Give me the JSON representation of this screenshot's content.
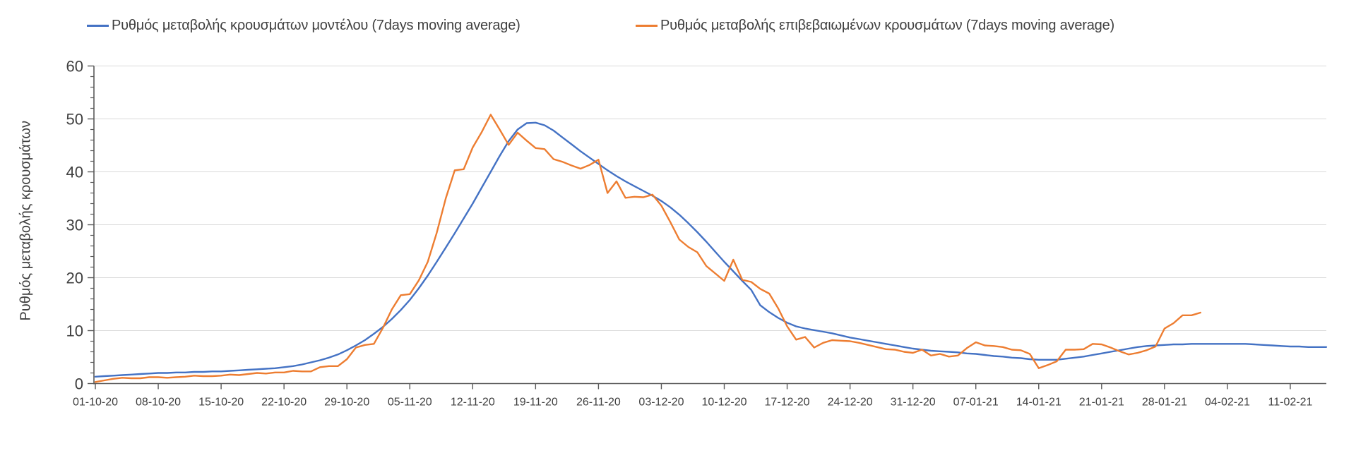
{
  "legend": {
    "items": [
      {
        "label": "Ρυθμός μεταβολής κρουσμάτων μοντέλου (7days moving average)",
        "color": "#4472C4"
      },
      {
        "label": "Ρυθμός μεταβολής επιβεβαιωμένων κρουσμάτων (7days moving average)",
        "color": "#ED7D31"
      }
    ]
  },
  "y_axis": {
    "title": "Ρυθμός μεταβολής κρουσμάτων",
    "tick_labels": [
      "0",
      "10",
      "20",
      "30",
      "40",
      "50",
      "60"
    ]
  },
  "x_axis": {
    "labels": [
      "01-10-20",
      "08-10-20",
      "15-10-20",
      "22-10-20",
      "29-10-20",
      "05-11-20",
      "12-11-20",
      "19-11-20",
      "26-11-20",
      "03-12-20",
      "10-12-20",
      "17-12-20",
      "24-12-20",
      "31-12-20",
      "07-01-21",
      "14-01-21",
      "21-01-21",
      "28-01-21",
      "04-02-21",
      "11-02-21"
    ]
  },
  "chart_data": {
    "type": "line",
    "title": "",
    "xlabel": "",
    "ylabel": "Ρυθμός μεταβολής κρουσμάτων",
    "ylim": [
      0,
      60
    ],
    "y_major_step": 10,
    "y_minor_step": 2,
    "grid": "horizontal-major",
    "legend_position": "top",
    "x_tick_labels": [
      "01-10-20",
      "08-10-20",
      "15-10-20",
      "22-10-20",
      "29-10-20",
      "05-11-20",
      "12-11-20",
      "19-11-20",
      "26-11-20",
      "03-12-20",
      "10-12-20",
      "17-12-20",
      "24-12-20",
      "31-12-20",
      "07-01-21",
      "14-01-21",
      "21-01-21",
      "28-01-21",
      "04-02-21",
      "11-02-21"
    ],
    "x_unit": "days since 01-10-20, one point per day, weekly ticks",
    "series": [
      {
        "name": "Ρυθμός μεταβολής κρουσμάτων μοντέλου (7days moving average)",
        "color": "#4472C4",
        "start_day": 0,
        "values": [
          1.3,
          1.4,
          1.5,
          1.6,
          1.7,
          1.8,
          1.9,
          2.0,
          2.0,
          2.1,
          2.1,
          2.2,
          2.2,
          2.3,
          2.3,
          2.4,
          2.5,
          2.6,
          2.7,
          2.8,
          2.9,
          3.1,
          3.3,
          3.6,
          4.0,
          4.4,
          4.9,
          5.5,
          6.3,
          7.2,
          8.2,
          9.4,
          10.7,
          12.2,
          13.9,
          15.8,
          18.0,
          20.4,
          23.0,
          25.7,
          28.4,
          31.2,
          34.0,
          37.0,
          40.0,
          43.0,
          45.8,
          48.0,
          49.2,
          49.3,
          48.8,
          47.8,
          46.5,
          45.2,
          43.9,
          42.7,
          41.5,
          40.3,
          39.2,
          38.2,
          37.3,
          36.4,
          35.5,
          34.5,
          33.3,
          31.9,
          30.3,
          28.6,
          26.8,
          24.9,
          23.0,
          21.2,
          19.4,
          17.7,
          14.8,
          13.5,
          12.4,
          11.5,
          10.8,
          10.4,
          10.1,
          9.8,
          9.5,
          9.1,
          8.7,
          8.4,
          8.1,
          7.8,
          7.5,
          7.2,
          6.9,
          6.6,
          6.4,
          6.2,
          6.1,
          6.0,
          5.9,
          5.7,
          5.6,
          5.4,
          5.2,
          5.1,
          4.9,
          4.8,
          4.6,
          4.5,
          4.5,
          4.5,
          4.7,
          4.9,
          5.1,
          5.4,
          5.7,
          6.0,
          6.3,
          6.6,
          6.9,
          7.1,
          7.2,
          7.3,
          7.4,
          7.4,
          7.5,
          7.5,
          7.5,
          7.5,
          7.5,
          7.5,
          7.5,
          7.4,
          7.3,
          7.2,
          7.1,
          7.0,
          7.0,
          6.9,
          6.9,
          6.9
        ]
      },
      {
        "name": "Ρυθμός μεταβολής επιβεβαιωμένων κρουσμάτων (7days moving average)",
        "color": "#ED7D31",
        "start_day": 0,
        "values": [
          0.3,
          0.6,
          0.9,
          1.1,
          1.0,
          1.0,
          1.2,
          1.2,
          1.1,
          1.2,
          1.3,
          1.5,
          1.4,
          1.4,
          1.5,
          1.7,
          1.6,
          1.8,
          2.0,
          1.9,
          2.1,
          2.1,
          2.4,
          2.3,
          2.3,
          3.1,
          3.3,
          3.3,
          4.6,
          6.8,
          7.3,
          7.5,
          10.5,
          14.0,
          16.7,
          16.9,
          19.5,
          23.0,
          28.5,
          35.0,
          40.3,
          40.5,
          44.6,
          47.5,
          50.8,
          48.0,
          45.1,
          47.4,
          45.9,
          44.5,
          44.3,
          42.4,
          41.9,
          41.2,
          40.6,
          41.3,
          42.3,
          36.0,
          38.2,
          35.1,
          35.3,
          35.2,
          35.7,
          33.6,
          30.5,
          27.2,
          25.8,
          24.8,
          22.2,
          20.8,
          19.4,
          23.4,
          19.6,
          19.2,
          17.9,
          17.0,
          14.2,
          10.8,
          8.3,
          8.8,
          6.8,
          7.7,
          8.2,
          8.1,
          8.0,
          7.7,
          7.3,
          6.9,
          6.5,
          6.4,
          6.0,
          5.8,
          6.4,
          5.3,
          5.6,
          5.1,
          5.3,
          6.7,
          7.8,
          7.2,
          7.1,
          6.9,
          6.4,
          6.3,
          5.6,
          2.9,
          3.5,
          4.2,
          6.4,
          6.4,
          6.5,
          7.5,
          7.4,
          6.8,
          6.1,
          5.5,
          5.8,
          6.3,
          7.0,
          10.4,
          11.4,
          12.9,
          12.9,
          13.4
        ]
      }
    ]
  }
}
